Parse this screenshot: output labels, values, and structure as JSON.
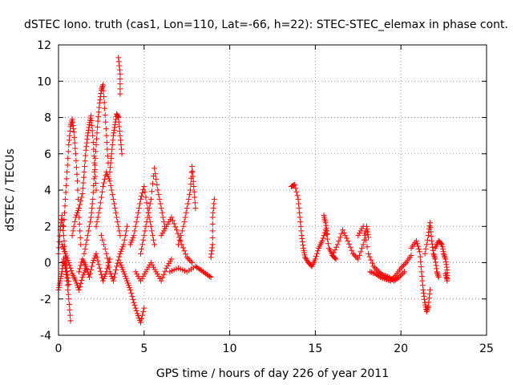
{
  "colors": {
    "series": "#ff0000",
    "axis": "#000000",
    "grid": "#a0a0a0"
  },
  "chart_data": {
    "type": "scatter",
    "marker": "plus",
    "title": "dSTEC Iono. truth (cas1, Lon=110, Lat=-66, h=22): STEC-STEC_elemax in phase cont.",
    "xlabel": "GPS time / hours of day 226 of year 2011",
    "ylabel": "dSTEC  / TECUs",
    "xlim": [
      0,
      25
    ],
    "ylim": [
      -4,
      12
    ],
    "xticks": [
      0,
      5,
      10,
      15,
      20,
      25
    ],
    "yticks": [
      -4,
      -2,
      0,
      2,
      4,
      6,
      8,
      10,
      12
    ],
    "grid": true,
    "series": [
      {
        "name": "STEC-STEC_elemax",
        "color": "#ff0000",
        "tracks": [
          [
            [
              0.0,
              0.5
            ],
            [
              0.1,
              1.8
            ],
            [
              0.2,
              2.6
            ],
            [
              0.3,
              1.5
            ],
            [
              0.4,
              0.3
            ],
            [
              0.5,
              -0.5
            ],
            [
              0.6,
              -1.2
            ]
          ],
          [
            [
              0.0,
              -1.5
            ],
            [
              0.1,
              -1.0
            ],
            [
              0.2,
              -0.5
            ],
            [
              0.3,
              0.2
            ],
            [
              0.4,
              -0.3
            ],
            [
              0.5,
              -1.0
            ],
            [
              0.6,
              -2.0
            ],
            [
              0.7,
              -3.2
            ]
          ],
          [
            [
              0.3,
              2.0
            ],
            [
              0.4,
              3.5
            ],
            [
              0.5,
              5.0
            ],
            [
              0.6,
              6.5
            ],
            [
              0.7,
              7.5
            ],
            [
              0.8,
              7.9
            ],
            [
              0.9,
              7.2
            ],
            [
              1.0,
              6.0
            ],
            [
              1.1,
              4.5
            ],
            [
              1.2,
              2.5
            ],
            [
              1.3,
              1.0
            ]
          ],
          [
            [
              0.2,
              1.0
            ],
            [
              0.4,
              0.5
            ],
            [
              0.6,
              0.0
            ],
            [
              0.8,
              -0.6
            ],
            [
              1.0,
              -1.0
            ],
            [
              1.2,
              -1.5
            ],
            [
              1.4,
              -0.8
            ],
            [
              1.6,
              -0.3
            ]
          ],
          [
            [
              0.8,
              1.5
            ],
            [
              1.0,
              2.5
            ],
            [
              1.2,
              3.0
            ],
            [
              1.4,
              3.8
            ],
            [
              1.5,
              5.0
            ],
            [
              1.6,
              6.2
            ],
            [
              1.7,
              7.0
            ],
            [
              1.8,
              7.6
            ],
            [
              1.9,
              8.1
            ],
            [
              2.0,
              7.0
            ],
            [
              2.1,
              5.5
            ],
            [
              2.2,
              4.0
            ]
          ],
          [
            [
              1.5,
              0.5
            ],
            [
              1.7,
              1.5
            ],
            [
              1.9,
              2.5
            ],
            [
              2.0,
              3.5
            ],
            [
              2.1,
              5.0
            ],
            [
              2.2,
              6.5
            ],
            [
              2.3,
              7.8
            ],
            [
              2.4,
              8.8
            ],
            [
              2.5,
              9.5
            ],
            [
              2.6,
              9.8
            ],
            [
              2.7,
              8.5
            ],
            [
              2.8,
              7.0
            ],
            [
              2.9,
              5.5
            ]
          ],
          [
            [
              1.2,
              -0.5
            ],
            [
              1.4,
              0.2
            ],
            [
              1.6,
              -0.2
            ],
            [
              1.8,
              -0.8
            ],
            [
              2.0,
              0.0
            ],
            [
              2.2,
              0.5
            ],
            [
              2.4,
              -0.3
            ],
            [
              2.6,
              -1.0
            ],
            [
              2.8,
              -0.5
            ],
            [
              3.0,
              0.2
            ]
          ],
          [
            [
              2.2,
              2.0
            ],
            [
              2.4,
              3.0
            ],
            [
              2.6,
              4.2
            ],
            [
              2.8,
              5.0
            ],
            [
              3.0,
              4.5
            ],
            [
              3.2,
              3.5
            ],
            [
              3.4,
              2.5
            ],
            [
              3.6,
              1.5
            ]
          ],
          [
            [
              3.0,
              5.0
            ],
            [
              3.1,
              6.0
            ],
            [
              3.2,
              7.0
            ],
            [
              3.3,
              7.6
            ],
            [
              3.4,
              8.2
            ],
            [
              3.5,
              8.0
            ],
            [
              3.6,
              7.0
            ],
            [
              3.7,
              6.0
            ]
          ],
          [
            [
              3.5,
              11.3
            ],
            [
              3.6,
              10.4
            ],
            [
              3.6,
              9.3
            ]
          ],
          [
            [
              2.5,
              1.5
            ],
            [
              2.8,
              0.5
            ],
            [
              3.0,
              -0.5
            ],
            [
              3.2,
              -1.0
            ],
            [
              3.4,
              -0.2
            ],
            [
              3.6,
              0.5
            ],
            [
              3.8,
              1.0
            ],
            [
              4.0,
              2.0
            ]
          ],
          [
            [
              3.6,
              0.0
            ],
            [
              3.8,
              -0.5
            ],
            [
              4.0,
              -1.0
            ],
            [
              4.2,
              -1.5
            ],
            [
              4.4,
              -2.2
            ],
            [
              4.6,
              -2.8
            ],
            [
              4.8,
              -3.3
            ],
            [
              5.0,
              -2.5
            ]
          ],
          [
            [
              4.2,
              1.0
            ],
            [
              4.4,
              1.5
            ],
            [
              4.6,
              2.5
            ],
            [
              4.8,
              3.5
            ],
            [
              5.0,
              4.2
            ],
            [
              5.2,
              3.0
            ],
            [
              5.4,
              2.0
            ],
            [
              5.6,
              1.0
            ]
          ],
          [
            [
              4.8,
              0.5
            ],
            [
              5.0,
              1.5
            ],
            [
              5.2,
              2.5
            ],
            [
              5.4,
              3.5
            ],
            [
              5.6,
              5.2
            ],
            [
              5.8,
              4.0
            ],
            [
              6.0,
              3.0
            ],
            [
              6.2,
              2.0
            ]
          ],
          [
            [
              4.5,
              -0.5
            ],
            [
              4.8,
              -1.0
            ],
            [
              5.1,
              -0.5
            ],
            [
              5.4,
              0.0
            ],
            [
              5.7,
              -0.5
            ],
            [
              6.0,
              -1.0
            ],
            [
              6.3,
              -0.3
            ],
            [
              6.6,
              0.2
            ]
          ],
          [
            [
              6.0,
              1.5
            ],
            [
              6.3,
              2.0
            ],
            [
              6.6,
              2.5
            ],
            [
              6.9,
              1.8
            ],
            [
              7.2,
              1.0
            ],
            [
              7.5,
              0.3
            ],
            [
              7.8,
              0.0
            ]
          ],
          [
            [
              7.0,
              1.0
            ],
            [
              7.3,
              2.0
            ],
            [
              7.5,
              3.0
            ],
            [
              7.7,
              4.0
            ],
            [
              7.8,
              5.3
            ],
            [
              7.9,
              4.2
            ],
            [
              8.0,
              3.0
            ]
          ],
          [
            [
              6.5,
              -0.5
            ],
            [
              7.0,
              -0.3
            ],
            [
              7.5,
              -0.5
            ],
            [
              8.0,
              -0.2
            ],
            [
              8.3,
              -0.4
            ],
            [
              8.6,
              -0.6
            ],
            [
              8.9,
              -0.8
            ]
          ],
          [
            [
              8.9,
              0.3
            ],
            [
              9.0,
              1.0
            ],
            [
              9.0,
              2.5
            ],
            [
              9.1,
              3.5
            ]
          ],
          [
            [
              13.6,
              4.2
            ],
            [
              13.8,
              4.3
            ],
            [
              14.0,
              3.5
            ],
            [
              14.1,
              2.5
            ],
            [
              14.2,
              1.5
            ],
            [
              14.3,
              0.8
            ],
            [
              14.4,
              0.3
            ],
            [
              14.6,
              0.0
            ],
            [
              14.8,
              -0.2
            ],
            [
              15.0,
              0.2
            ],
            [
              15.2,
              0.8
            ],
            [
              15.4,
              1.2
            ],
            [
              15.6,
              1.8
            ],
            [
              15.8,
              0.8
            ],
            [
              16.0,
              0.4
            ],
            [
              16.2,
              0.2
            ]
          ],
          [
            [
              15.5,
              2.6
            ],
            [
              15.6,
              2.2
            ],
            [
              15.7,
              1.6
            ]
          ],
          [
            [
              16.0,
              0.4
            ],
            [
              16.3,
              1.0
            ],
            [
              16.6,
              1.8
            ],
            [
              16.9,
              1.2
            ],
            [
              17.2,
              0.5
            ],
            [
              17.5,
              0.2
            ],
            [
              17.8,
              1.0
            ],
            [
              18.0,
              2.0
            ],
            [
              18.1,
              1.4
            ]
          ],
          [
            [
              17.5,
              1.5
            ],
            [
              17.8,
              2.0
            ],
            [
              18.1,
              0.5
            ],
            [
              18.4,
              -0.2
            ],
            [
              18.7,
              -0.5
            ],
            [
              19.0,
              -0.7
            ],
            [
              19.3,
              -0.8
            ],
            [
              19.6,
              -1.0
            ],
            [
              19.9,
              -0.8
            ],
            [
              20.2,
              -0.5
            ]
          ],
          [
            [
              18.2,
              -0.5
            ],
            [
              18.5,
              -0.6
            ],
            [
              18.8,
              -0.8
            ],
            [
              19.1,
              -0.9
            ],
            [
              19.4,
              -1.0
            ],
            [
              19.7,
              -0.7
            ],
            [
              20.0,
              -0.3
            ],
            [
              20.3,
              0.0
            ],
            [
              20.6,
              0.4
            ]
          ],
          [
            [
              20.6,
              0.8
            ],
            [
              20.9,
              1.2
            ],
            [
              21.1,
              0.6
            ],
            [
              21.2,
              -0.5
            ],
            [
              21.3,
              -1.5
            ],
            [
              21.4,
              -2.2
            ],
            [
              21.5,
              -2.7
            ],
            [
              21.6,
              -2.4
            ],
            [
              21.7,
              -1.5
            ]
          ],
          [
            [
              21.4,
              0.5
            ],
            [
              21.6,
              1.5
            ],
            [
              21.7,
              2.2
            ],
            [
              21.8,
              1.2
            ],
            [
              21.9,
              0.5
            ],
            [
              22.0,
              0.2
            ],
            [
              22.1,
              -0.5
            ],
            [
              22.2,
              -0.8
            ]
          ],
          [
            [
              22.0,
              0.8
            ],
            [
              22.2,
              1.2
            ],
            [
              22.4,
              1.0
            ],
            [
              22.5,
              0.5
            ],
            [
              22.6,
              0.2
            ],
            [
              22.7,
              -0.4
            ],
            [
              22.7,
              -1.0
            ],
            [
              22.6,
              -0.6
            ]
          ]
        ]
      }
    ]
  }
}
